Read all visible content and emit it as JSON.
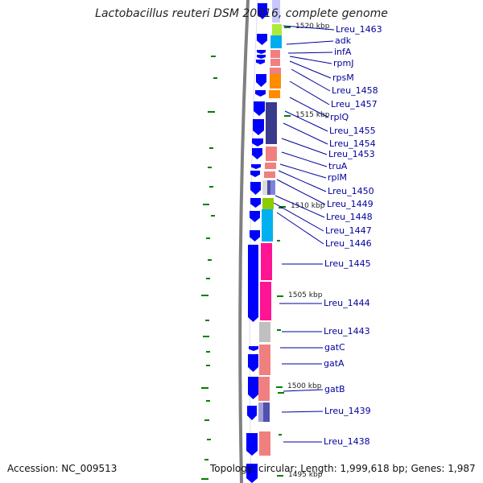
{
  "title": "Lactobacillus reuteri DSM 20016, complete genome",
  "footer": {
    "accession": "Accession: NC_009513",
    "topology": "Topology: circular; Length: 1,999,618 bp; Genes: 1,987"
  },
  "colors": {
    "gene_arrow": "#0000ff",
    "label": "#00009c",
    "backbone": "#808080",
    "gc_tick": "#008000"
  },
  "scale_labels": [
    "1520 kbp",
    "1515 kbp",
    "1510 kbp",
    "1505 kbp",
    "1500 kbp",
    "1495 kbp"
  ],
  "gene_labels": [
    "Lreu_1463",
    "adk",
    "infA",
    "rpmJ",
    "rpsM",
    "Lreu_1458",
    "Lreu_1457",
    "rplQ",
    "Lreu_1455",
    "Lreu_1454",
    "Lreu_1453",
    "truA",
    "rplM",
    "Lreu_1450",
    "Lreu_1449",
    "Lreu_1448",
    "Lreu_1447",
    "Lreu_1446",
    "Lreu_1445",
    "Lreu_1444",
    "Lreu_1443",
    "gatC",
    "gatA",
    "gatB",
    "Lreu_1439",
    "Lreu_1438"
  ]
}
